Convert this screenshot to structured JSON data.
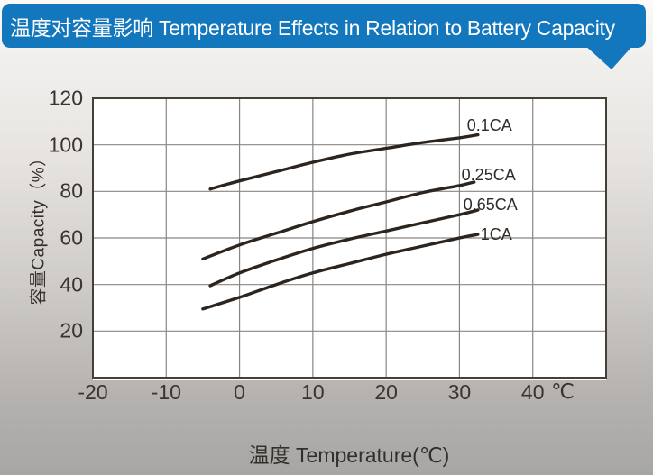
{
  "header": {
    "title": "温度对容量影响 Temperature Effects in Relation to Battery Capacity",
    "bg_color": "#1377bd",
    "text_color": "#ffffff"
  },
  "chart_data": {
    "type": "line",
    "title": "温度对容量影响 Temperature Effects in Relation to Battery Capacity",
    "xlabel": "温度  Temperature(℃)",
    "ylabel": "容量Capacity（%）",
    "x_unit": "℃",
    "xlim": [
      -20,
      50
    ],
    "ylim": [
      0,
      120
    ],
    "x_ticks": [
      -20,
      -10,
      0,
      10,
      20,
      30,
      40
    ],
    "y_ticks": [
      120,
      100,
      80,
      60,
      40,
      20
    ],
    "grid": true,
    "legend_position": "inline-labels-right-of-curves",
    "series": [
      {
        "name": "0.1CA",
        "points": [
          [
            -4,
            81
          ],
          [
            0,
            84.5
          ],
          [
            5,
            88.5
          ],
          [
            10,
            92.5
          ],
          [
            15,
            96
          ],
          [
            20,
            98.5
          ],
          [
            25,
            101
          ],
          [
            30,
            103
          ],
          [
            32.5,
            104.3
          ]
        ],
        "label_dx": -12,
        "label_dy": -21
      },
      {
        "name": "0.25CA",
        "points": [
          [
            -5,
            51
          ],
          [
            0,
            57
          ],
          [
            5,
            62
          ],
          [
            10,
            67
          ],
          [
            15,
            71.5
          ],
          [
            20,
            75.5
          ],
          [
            25,
            79.5
          ],
          [
            30,
            82.5
          ],
          [
            32,
            84
          ]
        ],
        "label_dx": -14,
        "label_dy": -18
      },
      {
        "name": "0.65CA",
        "points": [
          [
            -4,
            39.5
          ],
          [
            0,
            45
          ],
          [
            5,
            50.5
          ],
          [
            10,
            55.5
          ],
          [
            15,
            59.5
          ],
          [
            20,
            63
          ],
          [
            25,
            66.5
          ],
          [
            30,
            70
          ],
          [
            32.5,
            72
          ]
        ],
        "label_dx": -16,
        "label_dy": -16
      },
      {
        "name": "1CA",
        "points": [
          [
            -5,
            29.5
          ],
          [
            0,
            34.5
          ],
          [
            5,
            40
          ],
          [
            10,
            45
          ],
          [
            15,
            49
          ],
          [
            20,
            53
          ],
          [
            25,
            56.5
          ],
          [
            30,
            60
          ],
          [
            32.5,
            61.5
          ]
        ],
        "label_dx": 3,
        "label_dy": -10
      }
    ],
    "colors": {
      "curve": "#2c241e",
      "grid": "#8a8581",
      "frame": "#453f3a",
      "plot_bg": "#ffffff",
      "text": "#38342f"
    }
  }
}
